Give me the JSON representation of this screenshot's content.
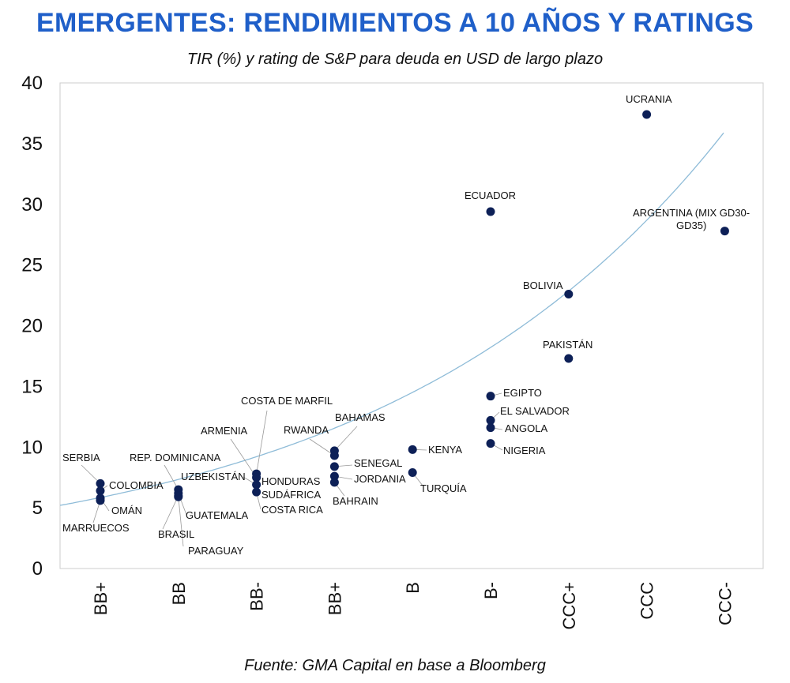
{
  "header": {
    "title": "EMERGENTES: RENDIMIENTOS A 10 AÑOS Y RATINGS",
    "subtitle": "TIR (%) y rating de S&P para deuda en USD de largo plazo"
  },
  "footer": {
    "source": "Fuente: GMA Capital en base a Bloomberg"
  },
  "colors": {
    "title": "#1f5fc9",
    "points": "#0d2057",
    "trend": "#8fbcd8",
    "leader": "#999999",
    "frame": "#cccccc"
  },
  "chart_data": {
    "type": "scatter",
    "title": "EMERGENTES: RENDIMIENTOS A 10 AÑOS Y RATINGS",
    "subtitle": "TIR (%) y rating de S&P para deuda en USD de largo plazo",
    "xlabel": "",
    "ylabel": "",
    "categories": [
      "BB+",
      "BB",
      "BB-",
      "BB+",
      "B",
      "B-",
      "CCC+",
      "CCC",
      "CCC-"
    ],
    "ylim": [
      0,
      40
    ],
    "yticks": [
      "0",
      "5",
      "10",
      "15",
      "20",
      "25",
      "30",
      "35",
      "40"
    ],
    "grid": false,
    "legend": "none",
    "points": [
      {
        "category_index": 0,
        "y": 7.0
      },
      {
        "category_index": 0,
        "y": 6.4
      },
      {
        "category_index": 0,
        "y": 5.8
      },
      {
        "category_index": 0,
        "y": 5.6
      },
      {
        "category_index": 1,
        "y": 6.5
      },
      {
        "category_index": 1,
        "y": 6.2
      },
      {
        "category_index": 1,
        "y": 6.0
      },
      {
        "category_index": 1,
        "y": 5.9
      },
      {
        "category_index": 2,
        "y": 7.8
      },
      {
        "category_index": 2,
        "y": 7.5
      },
      {
        "category_index": 2,
        "y": 6.9
      },
      {
        "category_index": 2,
        "y": 6.3
      },
      {
        "category_index": 3,
        "y": 9.7
      },
      {
        "category_index": 3,
        "y": 9.3
      },
      {
        "category_index": 3,
        "y": 8.4
      },
      {
        "category_index": 3,
        "y": 7.6
      },
      {
        "category_index": 3,
        "y": 7.1
      },
      {
        "category_index": 4,
        "y": 9.8
      },
      {
        "category_index": 4,
        "y": 7.9
      },
      {
        "category_index": 5,
        "y": 29.4
      },
      {
        "category_index": 5,
        "y": 14.2
      },
      {
        "category_index": 5,
        "y": 12.2
      },
      {
        "category_index": 5,
        "y": 11.6
      },
      {
        "category_index": 5,
        "y": 10.3
      },
      {
        "category_index": 6,
        "y": 22.6
      },
      {
        "category_index": 6,
        "y": 17.3
      },
      {
        "category_index": 7,
        "y": 37.4
      },
      {
        "category_index": 8,
        "y": 27.8
      }
    ],
    "annotations": [
      {
        "text": "SERBIA",
        "point": 0
      },
      {
        "text": "COLOMBIA",
        "point": 1
      },
      {
        "text": "OMÁN",
        "point": 2
      },
      {
        "text": "MARRUECOS",
        "point": 3
      },
      {
        "text": "REP. DOMINICANA",
        "point": 4
      },
      {
        "text": "GUATEMALA",
        "point": 5
      },
      {
        "text": "BRASIL",
        "point": 6
      },
      {
        "text": "PARAGUAY",
        "point": 7
      },
      {
        "text": "ARMENIA",
        "point": 9
      },
      {
        "text": "UZBEKISTÁN",
        "point": 10
      },
      {
        "text": "COSTA DE MARFIL",
        "point": 8
      },
      {
        "text": "HONDURAS",
        "point": 10
      },
      {
        "text": "SUDÁFRICA",
        "point": 11
      },
      {
        "text": "COSTA RICA",
        "point": 11
      },
      {
        "text": "RWANDA",
        "point": 13
      },
      {
        "text": "BAHAMAS",
        "point": 12
      },
      {
        "text": "SENEGAL",
        "point": 14
      },
      {
        "text": "JORDANIA",
        "point": 15
      },
      {
        "text": "BAHRAIN",
        "point": 16
      },
      {
        "text": "KENYA",
        "point": 17
      },
      {
        "text": "TURQUÍA",
        "point": 18
      },
      {
        "text": "ECUADOR",
        "point": 19
      },
      {
        "text": "EGIPTO",
        "point": 20
      },
      {
        "text": "EL SALVADOR",
        "point": 21
      },
      {
        "text": "ANGOLA",
        "point": 22
      },
      {
        "text": "NIGERIA",
        "point": 23
      },
      {
        "text": "BOLIVIA",
        "point": 24
      },
      {
        "text": "PAKISTÁN",
        "point": 25
      },
      {
        "text": "UCRANIA",
        "point": 26
      },
      {
        "text": "ARGENTINA (MIX GD30-",
        "point": 27
      },
      {
        "text": "GD35)",
        "point": 27
      }
    ],
    "trendline": {
      "type": "exponential",
      "start": 5.2,
      "end": 36.0
    }
  }
}
